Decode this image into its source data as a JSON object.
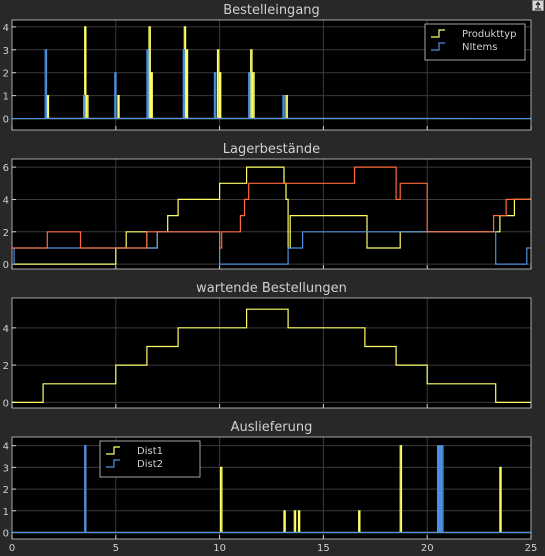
{
  "window": {
    "dock_icon": "undock-arrow-icon"
  },
  "style": {
    "figure_bg": "#282828",
    "axes_bg": "#000000",
    "grid": "#3a3a3a",
    "axis_color": "#cfcfcf",
    "text_color": "#d0d0d0",
    "colors": {
      "yellow": "#ffff66",
      "blue": "#4d90e0",
      "orange": "#ff6a3a"
    }
  },
  "chart_data": [
    {
      "type": "line",
      "step": true,
      "title": "Bestelleingang",
      "xlim": [
        0,
        25
      ],
      "ylim": [
        -0.5,
        4.3
      ],
      "yticks": [
        0,
        1,
        2,
        3,
        4
      ],
      "grid": true,
      "legend": "top-right",
      "series": [
        {
          "name": "Produkttyp",
          "color": "yellow",
          "pulses": [
            [
              1.7,
              1
            ],
            [
              3.5,
              4
            ],
            [
              3.6,
              1
            ],
            [
              5.1,
              1
            ],
            [
              6.6,
              4
            ],
            [
              6.7,
              2
            ],
            [
              8.3,
              4
            ],
            [
              8.4,
              3
            ],
            [
              9.9,
              3
            ],
            [
              10.0,
              2
            ],
            [
              11.5,
              3
            ],
            [
              11.6,
              2
            ],
            [
              13.2,
              1
            ]
          ]
        },
        {
          "name": "NItems",
          "color": "blue",
          "pulses": [
            [
              1.6,
              3
            ],
            [
              3.45,
              1
            ],
            [
              4.95,
              2
            ],
            [
              6.5,
              3
            ],
            [
              8.25,
              3
            ],
            [
              9.75,
              2
            ],
            [
              11.4,
              2
            ],
            [
              13.05,
              1
            ]
          ]
        }
      ]
    },
    {
      "type": "line",
      "step": true,
      "title": "Lagerbestände",
      "xlim": [
        0,
        25
      ],
      "ylim": [
        -0.3,
        6.5
      ],
      "yticks": [
        0,
        2,
        4,
        6
      ],
      "grid": true,
      "series": [
        {
          "color": "yellow",
          "points": [
            [
              0,
              0
            ],
            [
              5.0,
              0
            ],
            [
              5.0,
              1
            ],
            [
              5.5,
              1
            ],
            [
              5.5,
              2
            ],
            [
              6.5,
              2
            ],
            [
              6.5,
              1
            ],
            [
              7.0,
              1
            ],
            [
              7.0,
              2
            ],
            [
              7.5,
              2
            ],
            [
              7.5,
              3
            ],
            [
              8.0,
              3
            ],
            [
              8.0,
              4
            ],
            [
              10.0,
              4
            ],
            [
              10.0,
              5
            ],
            [
              11.3,
              5
            ],
            [
              11.3,
              6
            ],
            [
              13.1,
              6
            ],
            [
              13.1,
              5
            ],
            [
              13.2,
              5
            ],
            [
              13.2,
              4
            ],
            [
              13.3,
              4
            ],
            [
              13.3,
              1
            ],
            [
              13.4,
              1
            ],
            [
              13.4,
              3
            ],
            [
              17.1,
              3
            ],
            [
              17.1,
              1
            ],
            [
              18.7,
              1
            ],
            [
              18.7,
              2
            ],
            [
              23.5,
              2
            ],
            [
              23.5,
              3
            ],
            [
              24.2,
              3
            ],
            [
              24.2,
              4
            ],
            [
              25,
              4
            ]
          ]
        },
        {
          "color": "blue",
          "points": [
            [
              0,
              0
            ],
            [
              0.1,
              0
            ],
            [
              0.1,
              1
            ],
            [
              7.0,
              1
            ],
            [
              7.0,
              2
            ],
            [
              10.0,
              2
            ],
            [
              10.0,
              0
            ],
            [
              13.3,
              0
            ],
            [
              13.3,
              1
            ],
            [
              14.0,
              1
            ],
            [
              14.0,
              2
            ],
            [
              23.3,
              2
            ],
            [
              23.3,
              0
            ],
            [
              24.8,
              0
            ],
            [
              24.8,
              1
            ],
            [
              25,
              1
            ]
          ]
        },
        {
          "color": "orange",
          "points": [
            [
              0,
              1
            ],
            [
              1.7,
              1
            ],
            [
              1.7,
              2
            ],
            [
              3.3,
              2
            ],
            [
              3.3,
              1
            ],
            [
              6.5,
              1
            ],
            [
              6.5,
              2
            ],
            [
              10.0,
              2
            ],
            [
              10.0,
              1
            ],
            [
              10.1,
              1
            ],
            [
              10.1,
              2
            ],
            [
              11.0,
              2
            ],
            [
              11.0,
              3
            ],
            [
              11.2,
              3
            ],
            [
              11.2,
              4
            ],
            [
              11.4,
              4
            ],
            [
              11.4,
              5
            ],
            [
              16.5,
              5
            ],
            [
              16.5,
              6
            ],
            [
              18.5,
              6
            ],
            [
              18.5,
              4
            ],
            [
              18.7,
              4
            ],
            [
              18.7,
              5
            ],
            [
              20.0,
              5
            ],
            [
              20.0,
              2
            ],
            [
              23.2,
              2
            ],
            [
              23.2,
              3
            ],
            [
              23.8,
              3
            ],
            [
              23.8,
              4
            ],
            [
              25,
              4
            ]
          ]
        }
      ]
    },
    {
      "type": "line",
      "step": true,
      "title": "wartende Bestellungen",
      "xlim": [
        0,
        25
      ],
      "ylim": [
        -0.3,
        5.6
      ],
      "yticks": [
        0,
        2,
        4
      ],
      "grid": true,
      "series": [
        {
          "color": "yellow",
          "points": [
            [
              0,
              0
            ],
            [
              1.5,
              0
            ],
            [
              1.5,
              1
            ],
            [
              5.0,
              1
            ],
            [
              5.0,
              2
            ],
            [
              6.5,
              2
            ],
            [
              6.5,
              3
            ],
            [
              8.0,
              3
            ],
            [
              8.0,
              4
            ],
            [
              10.0,
              4
            ],
            [
              10.0,
              4
            ],
            [
              11.3,
              4
            ],
            [
              11.3,
              5
            ],
            [
              13.3,
              5
            ],
            [
              13.3,
              4
            ],
            [
              17.0,
              4
            ],
            [
              17.0,
              3
            ],
            [
              18.5,
              3
            ],
            [
              18.5,
              2
            ],
            [
              20.0,
              2
            ],
            [
              20.0,
              1
            ],
            [
              23.3,
              1
            ],
            [
              23.3,
              0
            ],
            [
              25,
              0
            ]
          ]
        }
      ]
    },
    {
      "type": "line",
      "step": true,
      "title": "Auslieferung",
      "xlim": [
        0,
        25
      ],
      "ylim": [
        -0.3,
        4.4
      ],
      "yticks": [
        0,
        1,
        2,
        3,
        4
      ],
      "xticks": [
        0,
        5,
        10,
        15,
        20,
        25
      ],
      "grid": true,
      "legend": "top-left",
      "series": [
        {
          "name": "Dist1",
          "color": "yellow",
          "pulses": [
            [
              10.05,
              3
            ],
            [
              13.1,
              1
            ],
            [
              13.6,
              1
            ],
            [
              13.8,
              1
            ],
            [
              16.7,
              1
            ],
            [
              18.7,
              4
            ],
            [
              23.5,
              3
            ]
          ]
        },
        {
          "name": "Dist2",
          "color": "blue",
          "pulses": [
            [
              3.5,
              4
            ],
            [
              20.5,
              4
            ],
            [
              20.6,
              4
            ],
            [
              20.7,
              4
            ]
          ]
        }
      ]
    }
  ]
}
